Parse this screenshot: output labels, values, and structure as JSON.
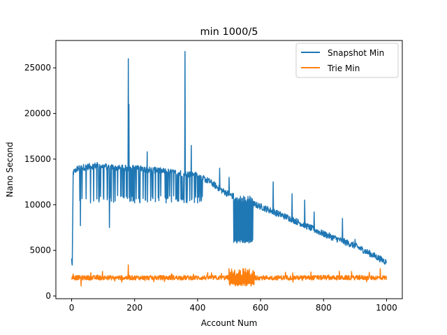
{
  "chart_data": {
    "type": "line",
    "title": "min 1000/5",
    "xlabel": "Account Num",
    "ylabel": "Nano Second",
    "xlim": [
      -50,
      1050
    ],
    "ylim": [
      -300,
      28000
    ],
    "xticks": [
      0,
      200,
      400,
      600,
      800,
      1000
    ],
    "yticks": [
      0,
      5000,
      10000,
      15000,
      20000,
      25000
    ],
    "grid": false,
    "legend_position": "top-right",
    "series": [
      {
        "name": "Snapshot Min",
        "color": "#1f77b4",
        "trend": [
          [
            0,
            4000
          ],
          [
            2,
            3300
          ],
          [
            5,
            13500
          ],
          [
            20,
            14000
          ],
          [
            80,
            14300
          ],
          [
            150,
            14000
          ],
          [
            200,
            14000
          ],
          [
            260,
            13800
          ],
          [
            330,
            13500
          ],
          [
            400,
            13200
          ],
          [
            440,
            12500
          ],
          [
            480,
            11500
          ],
          [
            520,
            10800
          ],
          [
            560,
            10300
          ],
          [
            600,
            9800
          ],
          [
            700,
            8400
          ],
          [
            800,
            6800
          ],
          [
            900,
            5500
          ],
          [
            1000,
            3700
          ]
        ],
        "spikes": [
          {
            "x": 180,
            "y": 26000
          },
          {
            "x": 182,
            "y": 21000
          },
          {
            "x": 360,
            "y": 26800
          },
          {
            "x": 240,
            "y": 15800
          },
          {
            "x": 300,
            "y": 15500
          },
          {
            "x": 380,
            "y": 16500
          },
          {
            "x": 470,
            "y": 14000
          },
          {
            "x": 500,
            "y": 13000
          },
          {
            "x": 640,
            "y": 12500
          },
          {
            "x": 700,
            "y": 11200
          },
          {
            "x": 740,
            "y": 10500
          },
          {
            "x": 770,
            "y": 9200
          },
          {
            "x": 860,
            "y": 8500
          },
          {
            "x": 900,
            "y": 6200
          }
        ],
        "dips": [
          {
            "x": 28,
            "y": 7700
          },
          {
            "x": 120,
            "y": 7500
          },
          {
            "x": 60,
            "y": 10200
          },
          {
            "x": 200,
            "y": 10200
          },
          {
            "x": 300,
            "y": 10200
          },
          {
            "x": 350,
            "y": 10500
          },
          {
            "x": 400,
            "y": 10200
          }
        ],
        "dense_band": {
          "x_start": 515,
          "x_end": 575,
          "low": 5800,
          "high": 11000
        }
      },
      {
        "name": "Trie Min",
        "color": "#ff7f0e",
        "baseline": 2000,
        "noise": 500,
        "spikes": [
          {
            "x": 180,
            "y": 3400
          },
          {
            "x": 500,
            "y": 3000
          },
          {
            "x": 850,
            "y": 2700
          },
          {
            "x": 980,
            "y": 3000
          }
        ],
        "dips": [
          {
            "x": 30,
            "y": 1100
          },
          {
            "x": 520,
            "y": 1100
          },
          {
            "x": 570,
            "y": 1100
          }
        ],
        "dense_band": {
          "x_start": 500,
          "x_end": 580,
          "low": 1100,
          "high": 3000
        }
      }
    ]
  }
}
